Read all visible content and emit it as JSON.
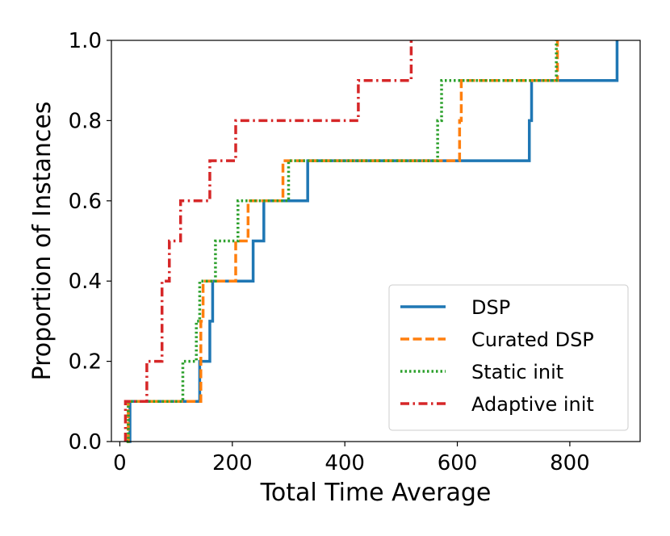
{
  "chart_data": {
    "type": "line",
    "step": "post",
    "title": "",
    "xlabel": "Total Time Average",
    "ylabel": "Proportion of Instances",
    "xlim": [
      -15,
      925
    ],
    "ylim": [
      0.0,
      1.0
    ],
    "xticks": [
      0,
      200,
      400,
      600,
      800
    ],
    "yticks": [
      0.0,
      0.2,
      0.4,
      0.6,
      0.8,
      1.0
    ],
    "xtick_labels": [
      "0",
      "200",
      "400",
      "600",
      "800"
    ],
    "ytick_labels": [
      "0.0",
      "0.2",
      "0.4",
      "0.6",
      "0.8",
      "1.0"
    ],
    "grid": false,
    "legend_position": "lower-right",
    "series": [
      {
        "name": "DSP",
        "color": "#1f77b4",
        "dash": "solid",
        "x": [
          14,
          18,
          138,
          142,
          160,
          165,
          237,
          256,
          334,
          728,
          732,
          884
        ],
        "y": [
          0.0,
          0.1,
          0.1,
          0.2,
          0.3,
          0.4,
          0.5,
          0.6,
          0.7,
          0.8,
          0.9,
          1.0
        ]
      },
      {
        "name": "Curated DSP",
        "color": "#ff7f0e",
        "dash": "dashed",
        "x": [
          12,
          15,
          144,
          148,
          152,
          206,
          228,
          290,
          604,
          607,
          778
        ],
        "y": [
          0.0,
          0.1,
          0.3,
          0.4,
          0.4,
          0.5,
          0.6,
          0.7,
          0.8,
          0.9,
          1.0
        ]
      },
      {
        "name": "Static init",
        "color": "#2ca02c",
        "dash": "dotted",
        "x": [
          12,
          15,
          112,
          136,
          142,
          170,
          210,
          300,
          565,
          572,
          776
        ],
        "y": [
          0.0,
          0.1,
          0.2,
          0.3,
          0.4,
          0.5,
          0.6,
          0.7,
          0.8,
          0.9,
          1.0
        ]
      },
      {
        "name": "Adaptive init",
        "color": "#d62728",
        "dash": "dashdot",
        "x": [
          10,
          48,
          75,
          88,
          108,
          160,
          206,
          424,
          518
        ],
        "y": [
          0.1,
          0.2,
          0.4,
          0.5,
          0.6,
          0.7,
          0.8,
          0.9,
          1.0
        ]
      }
    ]
  }
}
